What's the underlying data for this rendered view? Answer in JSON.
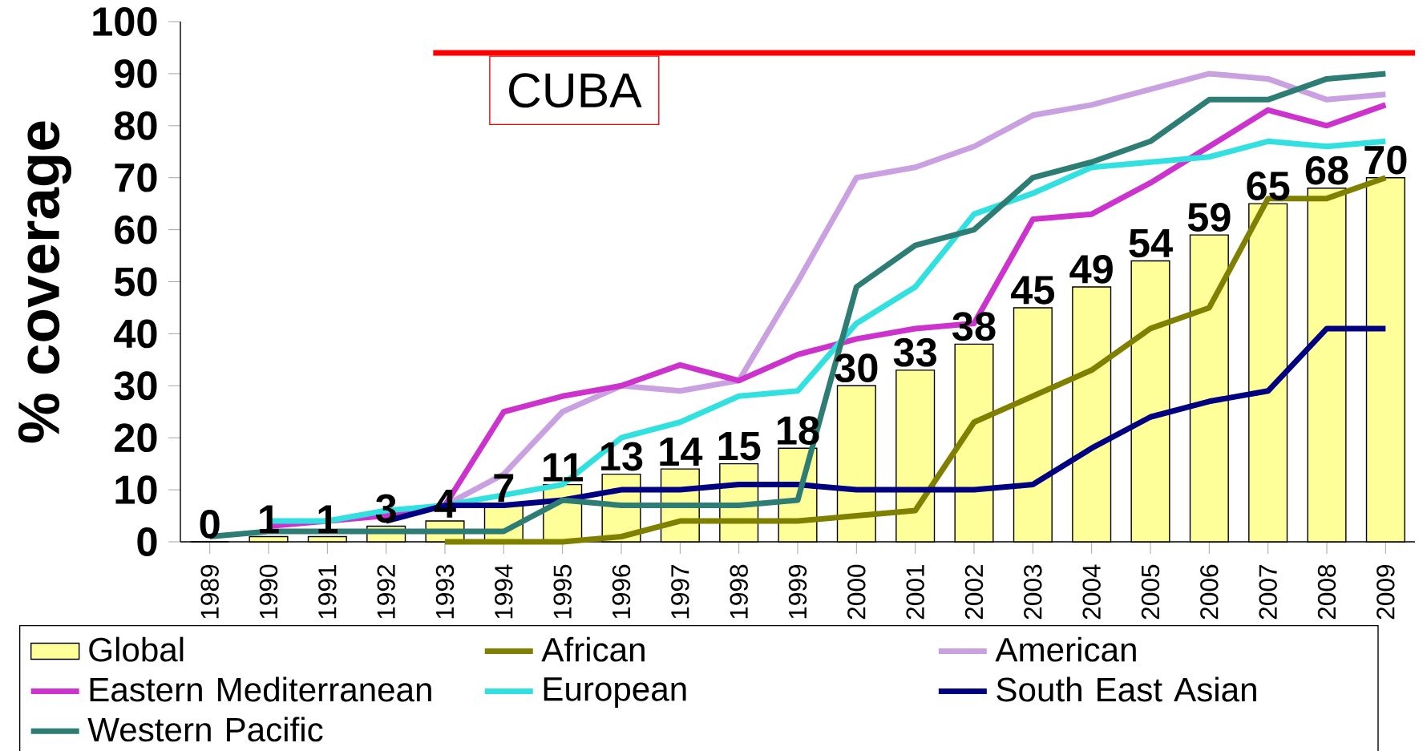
{
  "chart_data": {
    "type": "bar",
    "ylabel": "% coverage",
    "categories": [
      "1989",
      "1990",
      "1991",
      "1992",
      "1993",
      "1994",
      "1995",
      "1996",
      "1997",
      "1998",
      "1999",
      "2000",
      "2001",
      "2002",
      "2003",
      "2004",
      "2005",
      "2006",
      "2007",
      "2008",
      "2009"
    ],
    "ylim": [
      0,
      100
    ],
    "yticks": [
      0,
      10,
      20,
      30,
      40,
      50,
      60,
      70,
      80,
      90,
      100
    ],
    "legend": "bottom",
    "grid": false,
    "ref_lines": [
      {
        "axis": "y",
        "value": 94,
        "label": "CUBA",
        "color": "#ff0000"
      }
    ],
    "series": [
      {
        "name": "Global",
        "color": "#ffff99",
        "values": [
          0,
          1,
          1,
          3,
          4,
          7,
          11,
          13,
          14,
          15,
          18,
          30,
          33,
          38,
          45,
          49,
          54,
          59,
          65,
          68,
          70
        ],
        "value_labels": [
          "0",
          "1",
          "1",
          "3",
          "4",
          "7",
          "11",
          "13",
          "14",
          "15",
          "18",
          "30",
          "33",
          "38",
          "45",
          "49",
          "54",
          "59",
          "65",
          "68",
          "70"
        ]
      },
      {
        "name": "African",
        "type": "line",
        "color": "#808000",
        "values": [
          null,
          null,
          null,
          null,
          0,
          0,
          0,
          1,
          4,
          4,
          4,
          5,
          6,
          23,
          28,
          33,
          41,
          45,
          66,
          66,
          70
        ]
      },
      {
        "name": "American",
        "type": "line",
        "color": "#c9a0e0",
        "values": [
          null,
          null,
          null,
          null,
          7,
          13,
          25,
          30,
          29,
          31,
          50,
          70,
          72,
          76,
          82,
          84,
          87,
          90,
          89,
          85,
          86
        ]
      },
      {
        "name": "Eastern Mediterranean",
        "type": "line",
        "color": "#cc33cc",
        "values": [
          null,
          3,
          4,
          5,
          7,
          25,
          28,
          30,
          34,
          31,
          36,
          39,
          41,
          42,
          62,
          63,
          69,
          76,
          83,
          80,
          84
        ]
      },
      {
        "name": "European",
        "type": "line",
        "color": "#33e0e0",
        "values": [
          null,
          4,
          4,
          6,
          7,
          9,
          11,
          20,
          23,
          28,
          29,
          42,
          49,
          63,
          67,
          72,
          73,
          74,
          77,
          76,
          77
        ]
      },
      {
        "name": "South East Asian",
        "type": "line",
        "color": "#000080",
        "values": [
          null,
          null,
          null,
          4,
          7,
          7,
          8,
          10,
          10,
          11,
          11,
          10,
          10,
          10,
          11,
          18,
          24,
          27,
          29,
          41,
          41
        ]
      },
      {
        "name": "Western Pacific",
        "type": "line",
        "color": "#2e7d74",
        "values": [
          1,
          2,
          2,
          2,
          2,
          2,
          8,
          7,
          7,
          7,
          8,
          49,
          57,
          60,
          70,
          73,
          77,
          85,
          85,
          89,
          90
        ]
      }
    ]
  }
}
